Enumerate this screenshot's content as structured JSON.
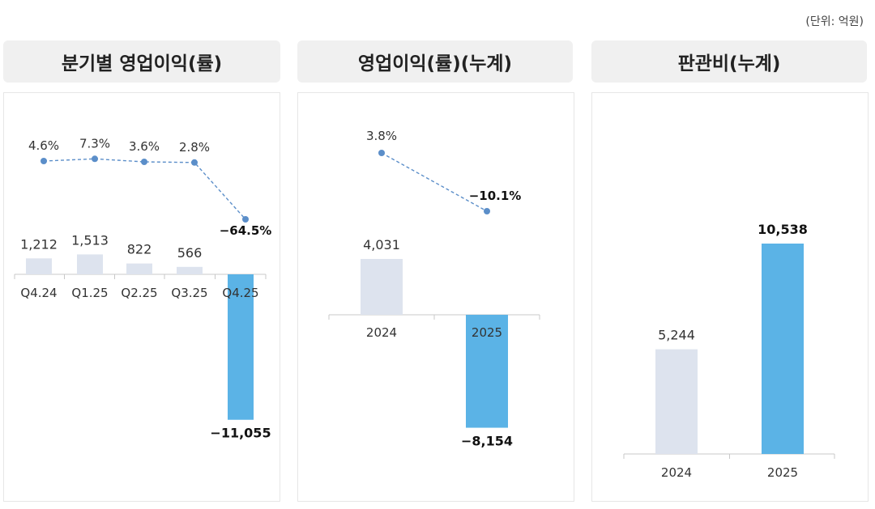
{
  "unit_label": "(단위: 억원)",
  "colors": {
    "past_bar": "#dde3ee",
    "current_bar": "#5bb3e6",
    "line": "#5b8ec9",
    "point": "#5b8ec9",
    "header_bg": "#f0f0f0"
  },
  "chart_data": [
    {
      "type": "bar",
      "title": "분기별 영업이익(률)",
      "categories": [
        "Q4.24",
        "Q1.25",
        "Q2.25",
        "Q3.25",
        "Q4.25"
      ],
      "series": [
        {
          "name": "",
          "type": "bar",
          "values": [
            1212,
            1513,
            822,
            566,
            -11055
          ],
          "labels": [
            "1,212",
            "1,513",
            "822",
            "566",
            "−11,055"
          ]
        },
        {
          "name": "",
          "type": "line",
          "values": [
            4.6,
            7.3,
            3.6,
            2.8,
            -64.5
          ],
          "labels": [
            "4.6%",
            "7.3%",
            "3.6%",
            "2.8%",
            "−64.5%"
          ]
        }
      ]
    },
    {
      "type": "bar",
      "title": "영업이익(률)(누계)",
      "categories": [
        "2024",
        "2025"
      ],
      "series": [
        {
          "name": "",
          "type": "bar",
          "values": [
            4031,
            -8154
          ],
          "labels": [
            "4,031",
            "−8,154"
          ]
        },
        {
          "name": "",
          "type": "line",
          "values": [
            3.8,
            -10.1
          ],
          "labels": [
            "3.8%",
            "−10.1%"
          ]
        }
      ]
    },
    {
      "type": "bar",
      "title": "판관비(누계)",
      "categories": [
        "2024",
        "2025"
      ],
      "series": [
        {
          "name": "",
          "type": "bar",
          "values": [
            5244,
            10538
          ],
          "labels": [
            "5,244",
            "10,538"
          ]
        }
      ]
    }
  ]
}
